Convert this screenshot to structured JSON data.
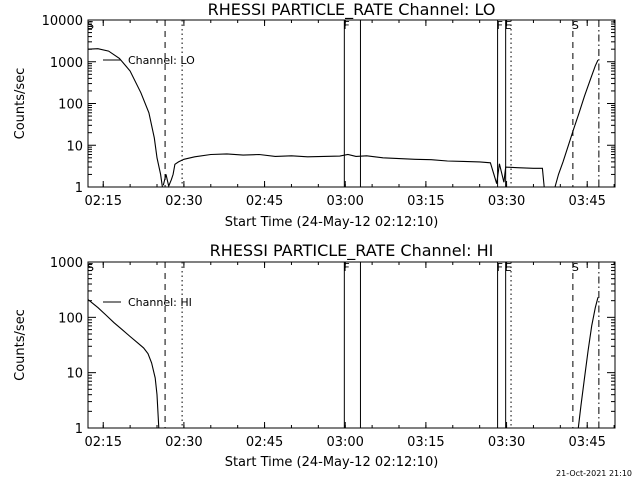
{
  "footer": "21-Oct-2021 21:10",
  "chart_data": [
    {
      "type": "line",
      "title": "RHESSI PARTICLE_RATE Channel: LO",
      "xlabel": "Start Time (24-May-12 02:12:10)",
      "ylabel": "Counts/sec",
      "yscale": "log",
      "ylim": [
        1,
        10000
      ],
      "xlim_minutes": [
        0,
        98
      ],
      "x_ticks": [
        "02:15",
        "02:30",
        "02:45",
        "03:00",
        "03:15",
        "03:30",
        "03:45"
      ],
      "y_ticks": [
        "1",
        "10",
        "100",
        "1000",
        "10000"
      ],
      "legend": "Channel: LO",
      "markers": [
        {
          "time": "02:12:10",
          "label": "S",
          "style": "none"
        },
        {
          "time": "02:26:30",
          "label": "",
          "style": "dashed"
        },
        {
          "time": "02:29:40",
          "label": "",
          "style": "dotted"
        },
        {
          "time": "02:59:50",
          "label": "F",
          "style": "solid"
        },
        {
          "time": "03:02:50",
          "label": "",
          "style": "solid"
        },
        {
          "time": "03:28:20",
          "label": "F",
          "style": "solid"
        },
        {
          "time": "03:29:50",
          "label": "E",
          "style": "solid"
        },
        {
          "time": "03:30:50",
          "label": "",
          "style": "dotted"
        },
        {
          "time": "03:42:20",
          "label": "S",
          "style": "dashed"
        },
        {
          "time": "03:47:10",
          "label": "",
          "style": "dashdot"
        }
      ],
      "series": [
        {
          "segments": [
            [
              [
                "02:12:10",
                2000
              ],
              [
                "02:14:00",
                2050
              ],
              [
                "02:16:00",
                1800
              ],
              [
                "02:18:00",
                1200
              ],
              [
                "02:20:00",
                600
              ],
              [
                "02:22:00",
                180
              ],
              [
                "02:23:30",
                60
              ],
              [
                "02:24:30",
                15
              ],
              [
                "02:25:00",
                5
              ],
              [
                "02:25:40",
                2
              ],
              [
                "02:26:00",
                1
              ]
            ],
            [
              [
                "02:26:10",
                1.1
              ],
              [
                "02:26:40",
                2
              ],
              [
                "02:27:10",
                1.05
              ],
              [
                "02:27:40",
                1.5
              ],
              [
                "02:28:00",
                2
              ],
              [
                "02:28:20",
                3.5
              ],
              [
                "02:29:00",
                4
              ],
              [
                "02:30:00",
                4.6
              ],
              [
                "02:32:00",
                5.3
              ],
              [
                "02:35:00",
                6
              ],
              [
                "02:38:00",
                6.2
              ],
              [
                "02:41:00",
                5.8
              ],
              [
                "02:44:00",
                6
              ],
              [
                "02:47:00",
                5.4
              ],
              [
                "02:50:00",
                5.6
              ],
              [
                "02:53:00",
                5.3
              ],
              [
                "02:56:00",
                5.4
              ],
              [
                "02:59:00",
                5.5
              ],
              [
                "03:00:30",
                6
              ],
              [
                "03:02:00",
                5.4
              ],
              [
                "03:04:00",
                5.6
              ],
              [
                "03:07:00",
                5
              ],
              [
                "03:10:00",
                4.8
              ],
              [
                "03:13:00",
                4.6
              ],
              [
                "03:16:00",
                4.5
              ],
              [
                "03:19:00",
                4.2
              ],
              [
                "03:22:00",
                4.1
              ],
              [
                "03:25:00",
                4
              ],
              [
                "03:27:00",
                3.8
              ],
              [
                "03:28:10",
                1.2
              ],
              [
                "03:28:40",
                3.6
              ],
              [
                "03:29:30",
                1.3
              ],
              [
                "03:29:50",
                3
              ],
              [
                "03:32:00",
                2.9
              ],
              [
                "03:35:00",
                2.8
              ],
              [
                "03:36:40",
                2.8
              ],
              [
                "03:37:00",
                1
              ]
            ],
            [
              [
                "03:39:00",
                1
              ],
              [
                "03:39:40",
                2
              ],
              [
                "03:40:30",
                4
              ],
              [
                "03:41:30",
                10
              ],
              [
                "03:42:30",
                25
              ],
              [
                "03:43:30",
                60
              ],
              [
                "03:44:30",
                150
              ],
              [
                "03:45:30",
                350
              ],
              [
                "03:46:30",
                800
              ],
              [
                "03:47:00",
                1100
              ]
            ]
          ]
        }
      ]
    },
    {
      "type": "line",
      "title": "RHESSI PARTICLE_RATE Channel: HI",
      "xlabel": "Start Time (24-May-12 02:12:10)",
      "ylabel": "Counts/sec",
      "yscale": "log",
      "ylim": [
        1,
        1000
      ],
      "xlim_minutes": [
        0,
        98
      ],
      "x_ticks": [
        "02:15",
        "02:30",
        "02:45",
        "03:00",
        "03:15",
        "03:30",
        "03:45"
      ],
      "y_ticks": [
        "1",
        "10",
        "100",
        "1000"
      ],
      "legend": "Channel: HI",
      "markers": [
        {
          "time": "02:12:10",
          "label": "S",
          "style": "none"
        },
        {
          "time": "02:26:30",
          "label": "",
          "style": "dashed"
        },
        {
          "time": "02:29:40",
          "label": "",
          "style": "dotted"
        },
        {
          "time": "02:59:50",
          "label": "F",
          "style": "solid"
        },
        {
          "time": "03:02:50",
          "label": "",
          "style": "solid"
        },
        {
          "time": "03:28:20",
          "label": "F",
          "style": "solid"
        },
        {
          "time": "03:29:50",
          "label": "E",
          "style": "solid"
        },
        {
          "time": "03:30:50",
          "label": "",
          "style": "dotted"
        },
        {
          "time": "03:42:20",
          "label": "S",
          "style": "dashed"
        },
        {
          "time": "03:47:10",
          "label": "",
          "style": "dashdot"
        }
      ],
      "series": [
        {
          "segments": [
            [
              [
                "02:12:10",
                210
              ],
              [
                "02:13:00",
                180
              ],
              [
                "02:14:00",
                150
              ],
              [
                "02:15:30",
                110
              ],
              [
                "02:17:00",
                80
              ],
              [
                "02:18:30",
                60
              ],
              [
                "02:20:00",
                45
              ],
              [
                "02:21:30",
                34
              ],
              [
                "02:22:30",
                28
              ],
              [
                "02:23:20",
                22
              ],
              [
                "02:24:00",
                15
              ],
              [
                "02:24:40",
                8
              ],
              [
                "02:25:00",
                4
              ],
              [
                "02:25:20",
                1
              ]
            ],
            [
              [
                "03:43:20",
                1
              ],
              [
                "03:43:50",
                2.5
              ],
              [
                "03:44:30",
                8
              ],
              [
                "03:45:10",
                25
              ],
              [
                "03:45:50",
                70
              ],
              [
                "03:46:30",
                150
              ],
              [
                "03:47:00",
                230
              ]
            ]
          ]
        }
      ]
    }
  ]
}
